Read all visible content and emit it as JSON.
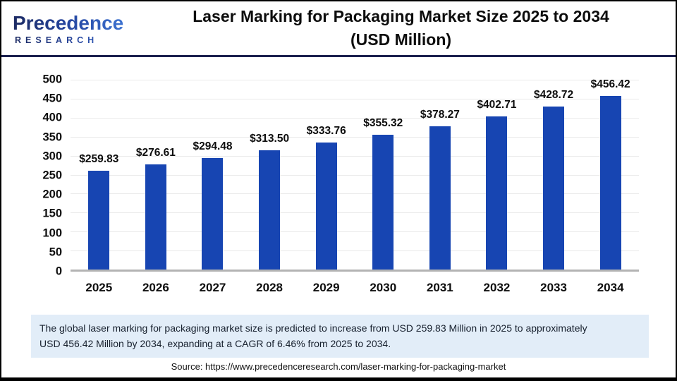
{
  "header": {
    "logo_line1": "Precedence",
    "logo_line2": "RESEARCH",
    "title_line1": "Laser Marking for Packaging Market Size 2025 to 2034",
    "title_line2": "(USD Million)"
  },
  "chart_data": {
    "type": "bar",
    "title": "Laser Marking for Packaging Market Size 2025 to 2034 (USD Million)",
    "categories": [
      "2025",
      "2026",
      "2027",
      "2028",
      "2029",
      "2030",
      "2031",
      "2032",
      "2033",
      "2034"
    ],
    "values": [
      259.83,
      276.61,
      294.48,
      313.5,
      333.76,
      355.32,
      378.27,
      402.71,
      428.72,
      456.42
    ],
    "value_labels": [
      "$259.83",
      "$276.61",
      "$294.48",
      "$313.50",
      "$333.76",
      "$355.32",
      "$378.27",
      "$402.71",
      "$428.72",
      "$456.42"
    ],
    "xlabel": "",
    "ylabel": "",
    "ylim": [
      0,
      500
    ],
    "ytick_step": 50,
    "grid": true,
    "legend": false,
    "bar_color": "#1745b2"
  },
  "footer": {
    "summary": "The global laser marking for packaging market size is predicted to increase from USD 259.83 Million in 2025 to approximately\nUSD 456.42 Million by 2034, expanding at a CAGR of 6.46% from 2025 to 2034.",
    "source": "Source: https://www.precedenceresearch.com/laser-marking-for-packaging-market"
  },
  "colors": {
    "bar": "#1745b2",
    "header_rule": "#1a1f4e",
    "summary_background": "#e2edf8",
    "gridline": "#eaeaea",
    "axis_line": "#b3b3b3",
    "logo_dark": "#1d2b63",
    "logo_light": "#4179d8"
  }
}
